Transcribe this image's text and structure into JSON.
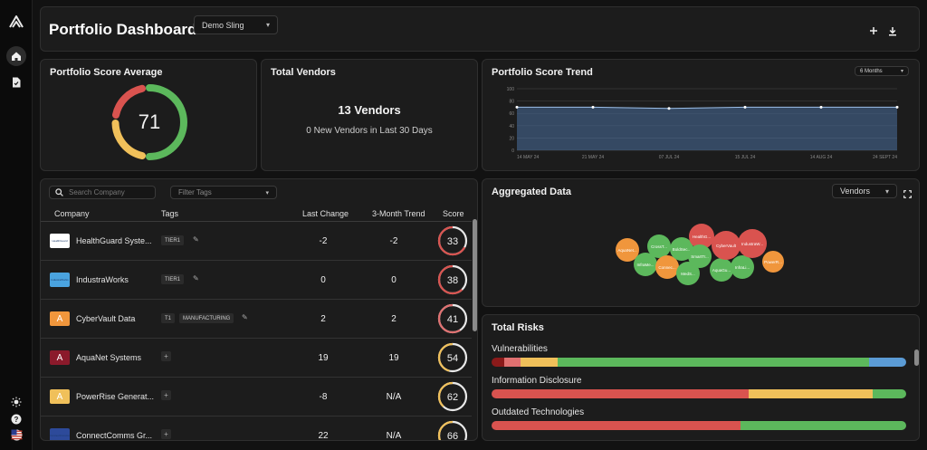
{
  "app": {
    "title": "Portfolio Dashboard",
    "portfolio_select": "Demo Sling"
  },
  "colors": {
    "red": "#d9534f",
    "green": "#5cb85c",
    "yellow": "#f0c05a",
    "orange": "#f0963c",
    "blue": "#5b9bd5",
    "darkred": "#8b1a1a",
    "pink": "#e07070"
  },
  "icons": {
    "logo": "brand-logo-icon",
    "home": "home-icon",
    "report": "document-icon",
    "theme": "sun-icon",
    "help": "help-icon",
    "locale": "us-flag-icon",
    "add": "plus-icon",
    "download": "download-icon",
    "search": "search-icon",
    "expand": "expand-icon"
  },
  "score_card": {
    "title": "Portfolio Score Average",
    "value": "71"
  },
  "vendors_card": {
    "title": "Total Vendors",
    "count": "13 Vendors",
    "new": "0 New Vendors in Last 30 Days"
  },
  "trend_card": {
    "title": "Portfolio Score Trend",
    "range_select": "6 Months"
  },
  "chart_data": {
    "type": "area",
    "x": [
      "14 MAY 24",
      "21 MAY 24",
      "07 JUL 24",
      "15 JUL 24",
      "14 AUG 24",
      "24 SEPT 24"
    ],
    "values": [
      70,
      70,
      68,
      70,
      70,
      70
    ],
    "y_ticks": [
      "100",
      "80",
      "60",
      "40",
      "20",
      "0"
    ],
    "ylim": [
      0,
      100
    ],
    "grid": true
  },
  "table": {
    "search_placeholder": "Search Company",
    "filter_placeholder": "Filter Tags",
    "columns": {
      "company": "Company",
      "tags": "Tags",
      "last_change": "Last Change",
      "trend": "3-Month Trend",
      "score": "Score"
    },
    "rows": [
      {
        "name": "HealthGuard Syste...",
        "logo_text": "HealthGuard",
        "logo_color": "#ffffff",
        "tags": [
          "TIER1"
        ],
        "edit": true,
        "last_change": "-2",
        "trend": "-2",
        "score": "33"
      },
      {
        "name": "IndustraWorks",
        "logo_text": "IndustraWorks",
        "logo_color": "#4aa3df",
        "tags": [
          "TIER1"
        ],
        "edit": true,
        "last_change": "0",
        "trend": "0",
        "score": "38"
      },
      {
        "name": "CyberVault Data",
        "logo_text": "A",
        "logo_color": "#f0963c",
        "tags": [
          "T1",
          "MANUFACTURING"
        ],
        "edit": true,
        "last_change": "2",
        "trend": "2",
        "score": "41"
      },
      {
        "name": "AquaNet Systems",
        "logo_text": "A",
        "logo_color": "#8b1a2b",
        "tags": [],
        "edit": false,
        "last_change": "19",
        "trend": "19",
        "score": "54"
      },
      {
        "name": "PowerRise Generat...",
        "logo_text": "A",
        "logo_color": "#f0c05a",
        "tags": [],
        "edit": false,
        "last_change": "-8",
        "trend": "N/A",
        "score": "62"
      },
      {
        "name": "ConnectComms Gr...",
        "logo_text": "ConnectComms",
        "logo_color": "#2d4a9a",
        "tags": [],
        "edit": false,
        "last_change": "22",
        "trend": "N/A",
        "score": "66"
      }
    ]
  },
  "aggregated": {
    "title": "Aggregated Data",
    "view_select": "Vendors",
    "bubbles": [
      {
        "label": "AquaNet...",
        "color": "#f0963c"
      },
      {
        "label": "InfraMe...",
        "color": "#5cb85c"
      },
      {
        "label": "CrossT...",
        "color": "#5cb85c"
      },
      {
        "label": "Connec...",
        "color": "#f0963c"
      },
      {
        "label": "MedS...",
        "color": "#5cb85c"
      },
      {
        "label": "BoldSec...",
        "color": "#5cb85c"
      },
      {
        "label": "HealthG...",
        "color": "#d9534f"
      },
      {
        "label": "SmartTr...",
        "color": "#5cb85c"
      },
      {
        "label": "AquaGu...",
        "color": "#5cb85c"
      },
      {
        "label": "CyberVault",
        "color": "#d9534f"
      },
      {
        "label": "InfraLi...",
        "color": "#5cb85c"
      },
      {
        "label": "IndustraW...",
        "color": "#d9534f"
      },
      {
        "label": "PowerR...",
        "color": "#f0963c"
      }
    ]
  },
  "risks": {
    "title": "Total Risks",
    "items": [
      {
        "label": "Vulnerabilities",
        "segments": [
          {
            "color": "#8b1a1a",
            "share": 3
          },
          {
            "color": "#e07070",
            "share": 4
          },
          {
            "color": "#f0c05a",
            "share": 9
          },
          {
            "color": "#5cb85c",
            "share": 75
          },
          {
            "color": "#5b9bd5",
            "share": 9
          }
        ]
      },
      {
        "label": "Information Disclosure",
        "segments": [
          {
            "color": "#d9534f",
            "share": 62
          },
          {
            "color": "#f0c05a",
            "share": 30
          },
          {
            "color": "#5cb85c",
            "share": 8
          }
        ]
      },
      {
        "label": "Outdated Technologies",
        "segments": [
          {
            "color": "#d9534f",
            "share": 60
          },
          {
            "color": "#5cb85c",
            "share": 40
          }
        ]
      }
    ]
  }
}
